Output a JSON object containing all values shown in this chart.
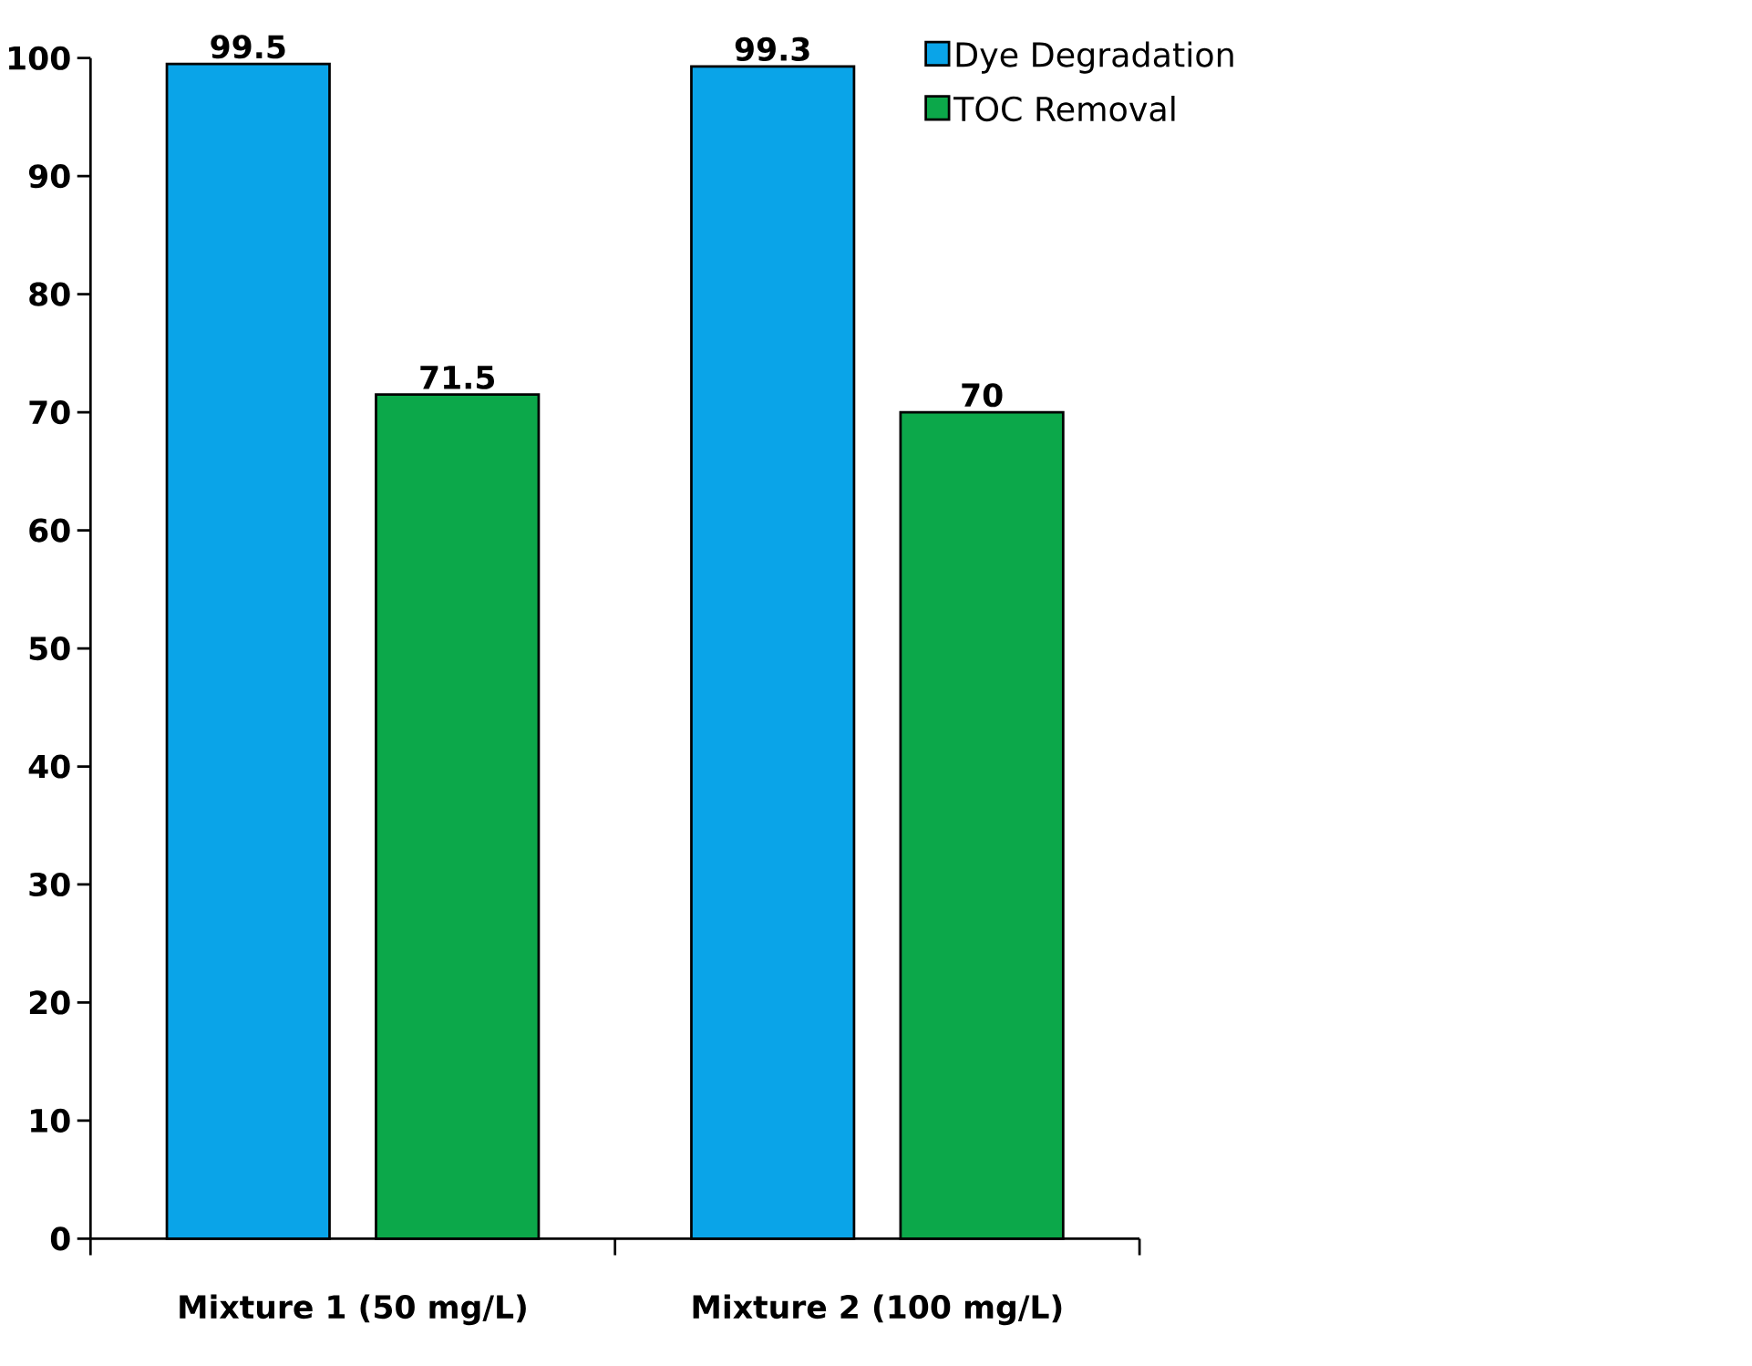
{
  "chart_data": {
    "type": "bar",
    "categories": [
      "Mixture 1 (50 mg/L)",
      "Mixture 2 (100 mg/L)"
    ],
    "series": [
      {
        "name": "Dye Degradation",
        "color": "#0aa4e8",
        "values": [
          99.5,
          99.3
        ]
      },
      {
        "name": "TOC Removal",
        "color": "#0ca84a",
        "values": [
          71.5,
          70
        ]
      }
    ],
    "ylim": [
      0,
      100
    ],
    "yticks": [
      0,
      10,
      20,
      30,
      40,
      50,
      60,
      70,
      80,
      90,
      100
    ],
    "data_labels": true,
    "legend": "top right"
  }
}
